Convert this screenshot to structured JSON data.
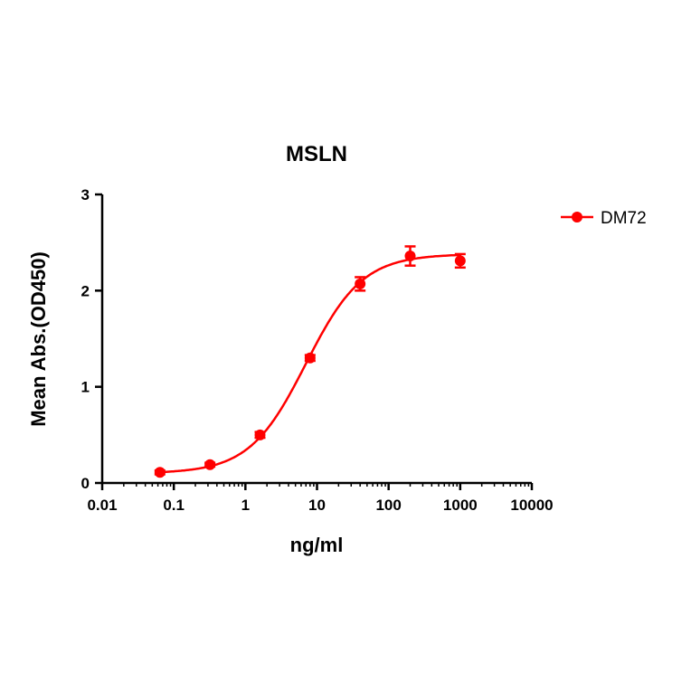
{
  "chart_data": {
    "type": "scatter",
    "title": "MSLN",
    "xlabel": "ng/ml",
    "ylabel": "Mean Abs.(OD450)",
    "x_scale": "log",
    "xlim": [
      0.01,
      10000
    ],
    "ylim": [
      0,
      3
    ],
    "x_ticks": [
      "0.01",
      "0.1",
      "1",
      "10",
      "100",
      "1000",
      "10000"
    ],
    "y_ticks": [
      "0",
      "1",
      "2",
      "3"
    ],
    "grid": false,
    "legend_position": "top-right",
    "series": [
      {
        "name": "DM72",
        "color": "#ff0000",
        "x": [
          0.064,
          0.32,
          1.6,
          8,
          40,
          200,
          1000
        ],
        "y": [
          0.11,
          0.19,
          0.5,
          1.3,
          2.07,
          2.36,
          2.31
        ],
        "error": [
          0.02,
          0.02,
          0.03,
          0.03,
          0.07,
          0.1,
          0.07
        ],
        "fit": {
          "model": "4PL",
          "bottom": 0.1,
          "top": 2.38,
          "ec50": 7,
          "hill": 1.1
        }
      }
    ]
  }
}
